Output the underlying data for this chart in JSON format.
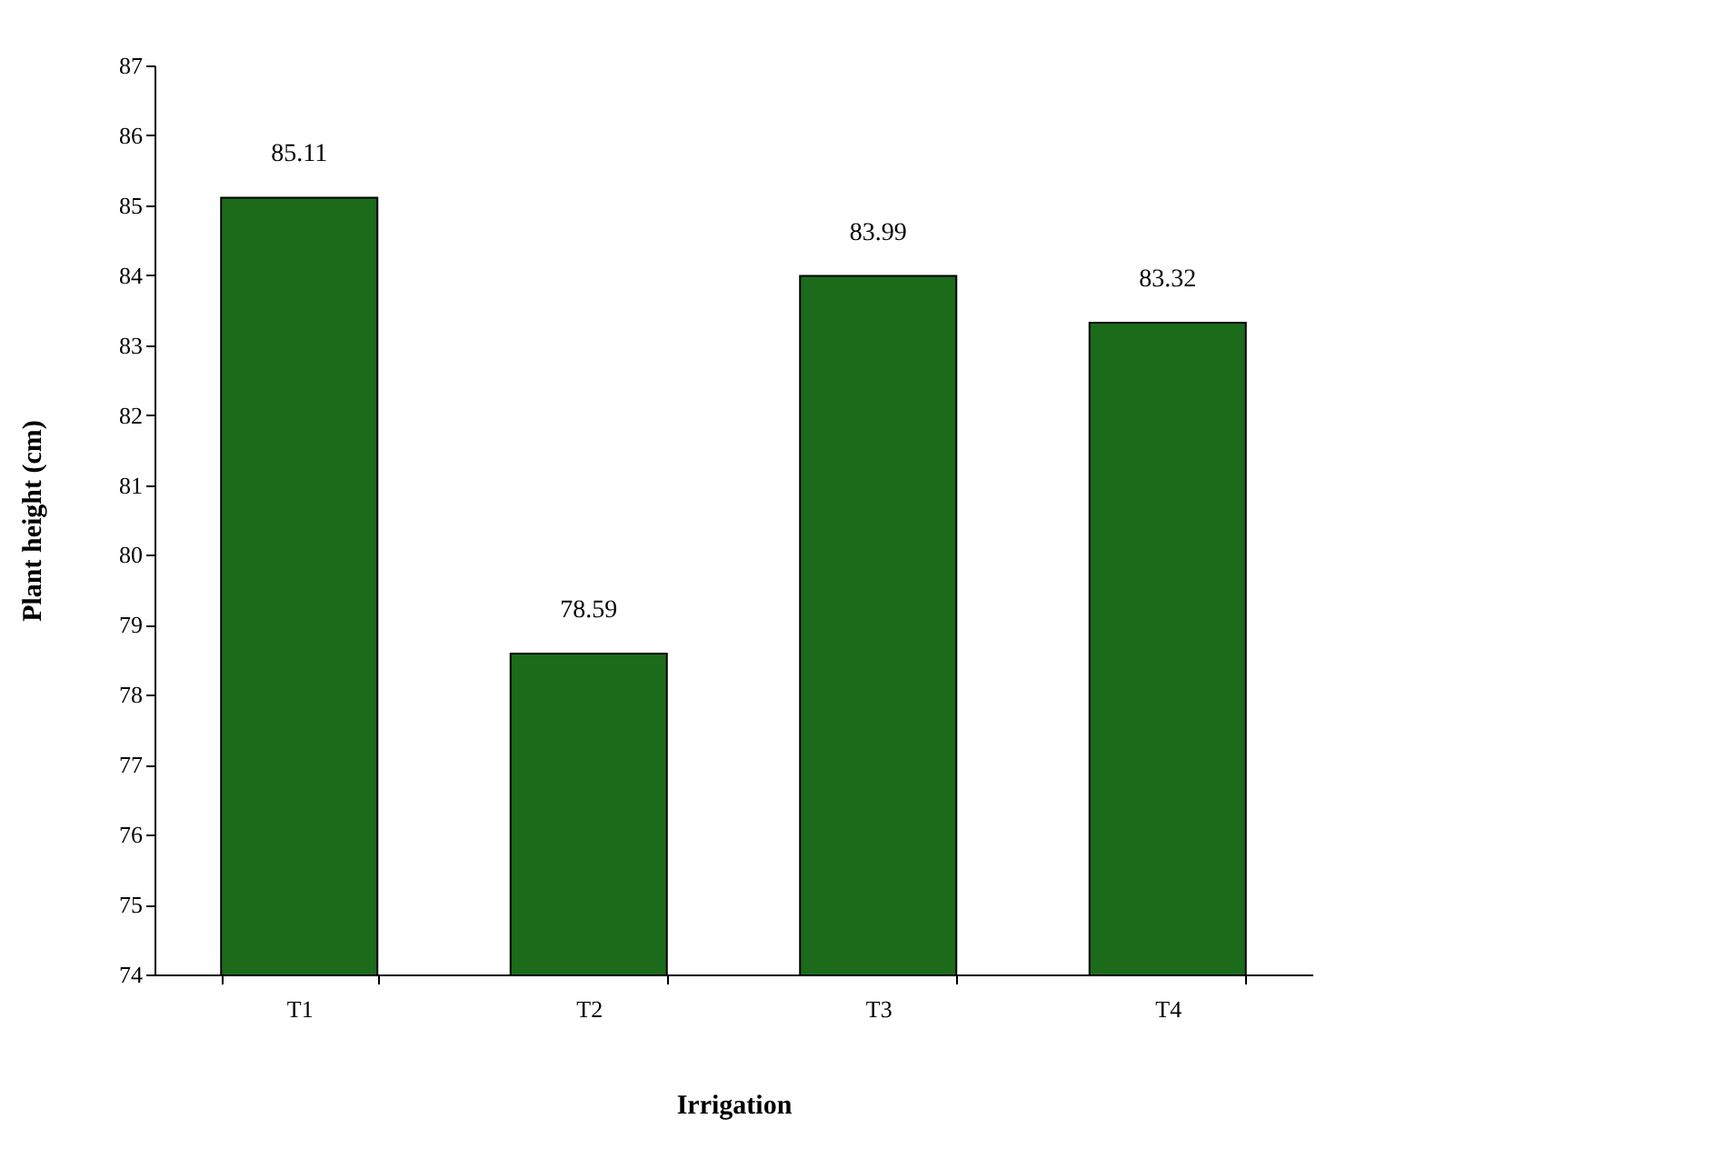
{
  "chart_data": {
    "type": "bar",
    "xlabel": "Irrigation",
    "ylabel": "Plant height (cm)",
    "categories": [
      "T1",
      "T2",
      "T3",
      "T4"
    ],
    "values": [
      85.11,
      78.59,
      83.99,
      83.32
    ],
    "color": "#1b6b1b",
    "ylim": [
      74,
      87
    ],
    "yticks": [
      74,
      75,
      76,
      77,
      78,
      79,
      80,
      81,
      82,
      83,
      84,
      85,
      86,
      87
    ],
    "grid": false,
    "data_labels": true
  }
}
